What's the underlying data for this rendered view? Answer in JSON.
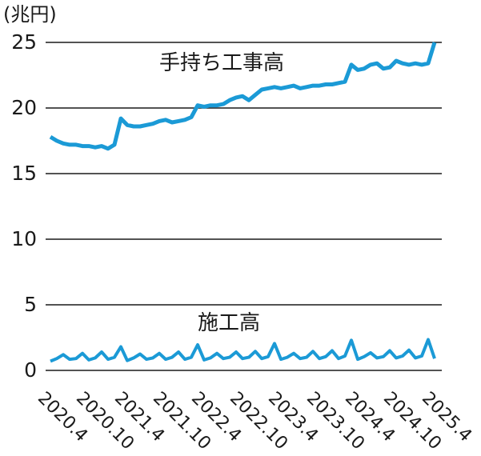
{
  "unit_label": "(兆円)",
  "series_labels": {
    "backlog": "手持ち工事高",
    "construction": "施工高"
  },
  "colors": {
    "line": "#1b9ad6",
    "grid": "#1a1a1a",
    "text": "#1a1a1a"
  },
  "chart_data": {
    "type": "line",
    "title": "",
    "ylabel": "(兆円)",
    "ylim": [
      0,
      25
    ],
    "yticks": [
      0,
      5,
      10,
      15,
      20,
      25
    ],
    "grid": "horizontal",
    "legend": "inline-annotations",
    "x_interval": "monthly",
    "x_start": "2020.4",
    "x_end": "2025.4",
    "x_tick_labels": [
      "2020.4",
      "2020.10",
      "2021.4",
      "2021.10",
      "2022.4",
      "2022.10",
      "2023.4",
      "2023.10",
      "2024.4",
      "2024.10",
      "2025.4"
    ],
    "series": [
      {
        "name": "手持ち工事高",
        "values": [
          17.8,
          17.5,
          17.3,
          17.2,
          17.2,
          17.1,
          17.1,
          17.0,
          17.1,
          16.9,
          17.2,
          19.2,
          18.7,
          18.6,
          18.6,
          18.7,
          18.8,
          19.0,
          19.1,
          18.9,
          19.0,
          19.1,
          19.3,
          20.2,
          20.1,
          20.2,
          20.2,
          20.3,
          20.6,
          20.8,
          20.9,
          20.6,
          21.0,
          21.4,
          21.5,
          21.6,
          21.5,
          21.6,
          21.7,
          21.5,
          21.6,
          21.7,
          21.7,
          21.8,
          21.8,
          21.9,
          22.0,
          23.3,
          22.9,
          23.0,
          23.3,
          23.4,
          23.0,
          23.1,
          23.6,
          23.4,
          23.3,
          23.4,
          23.3,
          23.4,
          25.0
        ]
      },
      {
        "name": "施工高",
        "values": [
          0.7,
          0.9,
          1.2,
          0.85,
          0.9,
          1.3,
          0.8,
          0.95,
          1.4,
          0.85,
          1.0,
          1.8,
          0.75,
          0.95,
          1.25,
          0.85,
          0.95,
          1.3,
          0.85,
          1.0,
          1.4,
          0.85,
          1.0,
          1.95,
          0.8,
          0.95,
          1.3,
          0.9,
          1.0,
          1.4,
          0.9,
          1.0,
          1.45,
          0.9,
          1.05,
          2.05,
          0.85,
          1.0,
          1.3,
          0.9,
          1.0,
          1.45,
          0.9,
          1.05,
          1.5,
          0.9,
          1.1,
          2.3,
          0.85,
          1.05,
          1.35,
          0.95,
          1.05,
          1.5,
          0.95,
          1.1,
          1.55,
          0.95,
          1.1,
          2.35,
          0.9
        ]
      }
    ]
  }
}
